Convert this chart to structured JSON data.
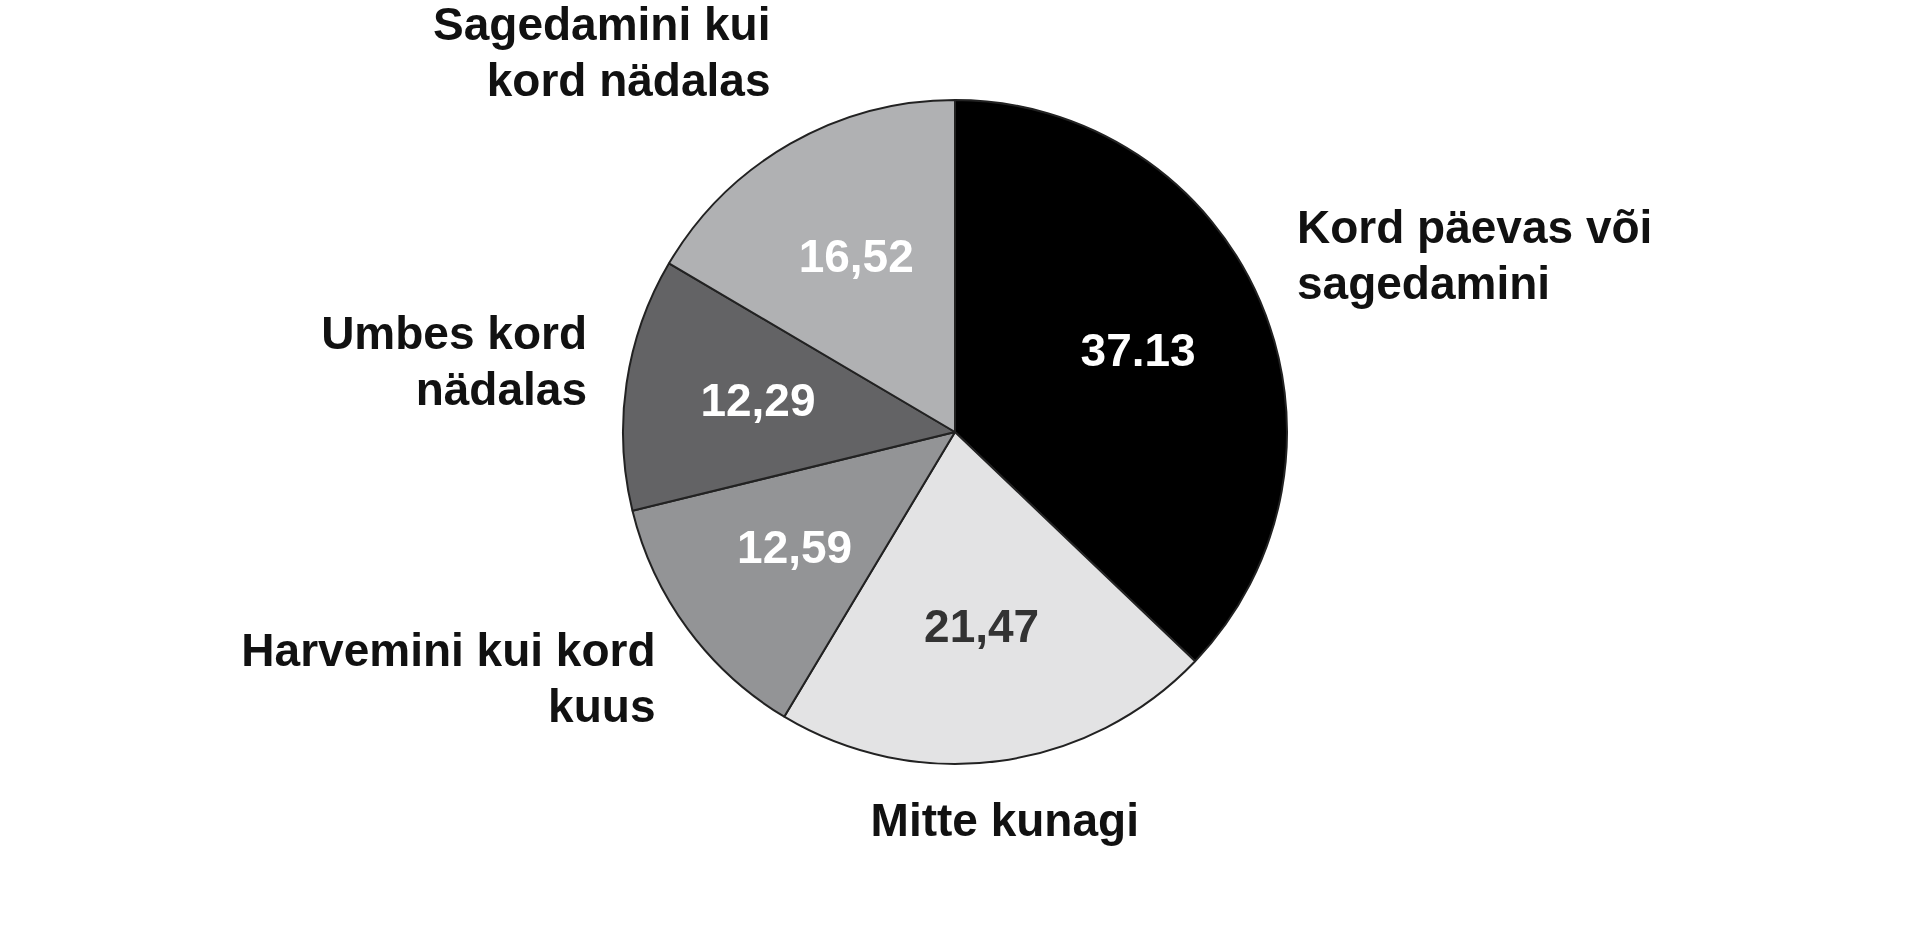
{
  "chart_data": {
    "type": "pie",
    "categories": [
      "Kord päevas või sagedamini",
      "Mitte kunagi",
      "Harvemini kui kord kuus",
      "Umbes kord nädalas",
      "Sagedamini kui kord nädalas"
    ],
    "values": [
      37.13,
      21.47,
      12.59,
      12.29,
      16.52
    ],
    "value_labels": [
      "37.13",
      "21,47",
      "12,59",
      "12,29",
      "16,52"
    ],
    "colors": [
      "#000000",
      "#e3e3e4",
      "#939496",
      "#636365",
      "#b0b1b3"
    ],
    "legend": false
  }
}
